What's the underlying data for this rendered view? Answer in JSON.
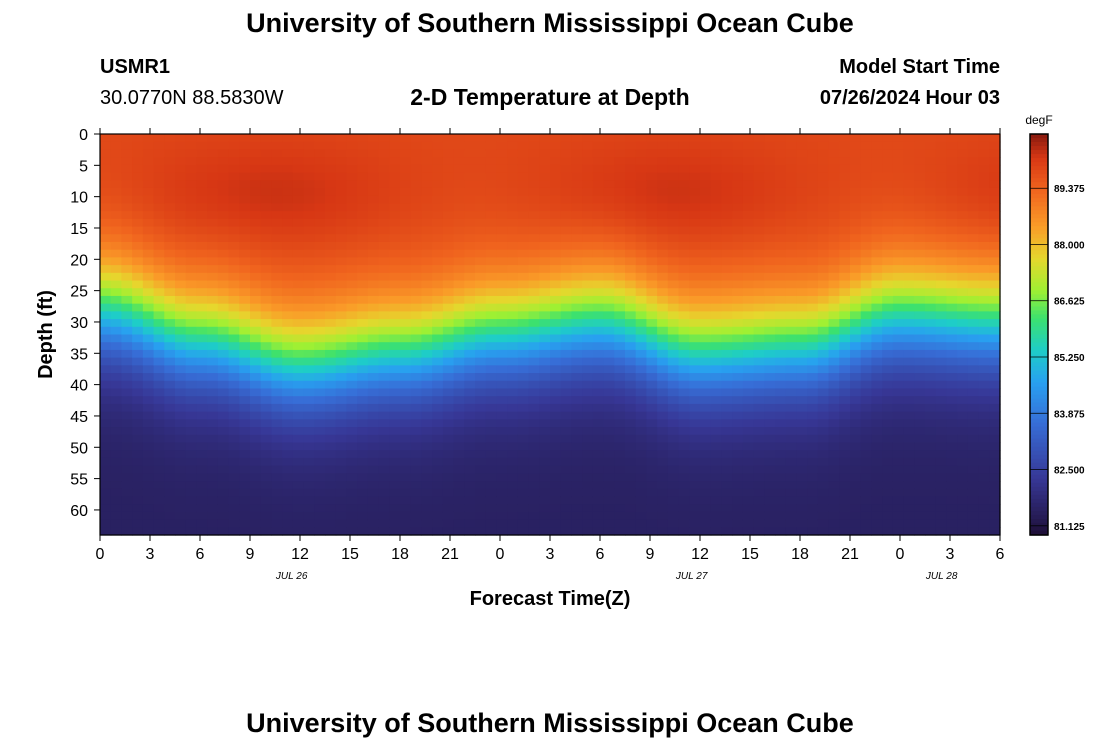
{
  "page": {
    "title": "University of Southern Mississippi Ocean Cube",
    "footer_title": "University of Southern Mississippi Ocean Cube",
    "station_id": "USMR1",
    "coords": "30.0770N  88.5830W",
    "plot_title": "2-D Temperature at Depth",
    "model_start_label": "Model Start Time",
    "model_start_value": "07/26/2024 Hour 03"
  },
  "chart_data": {
    "type": "heatmap",
    "title": "2-D Temperature at Depth",
    "xlabel": "Forecast Time(Z)",
    "ylabel": "Depth (ft)",
    "x_range_hours": [
      0,
      54
    ],
    "x_tick_labels": [
      "0",
      "3",
      "6",
      "9",
      "12",
      "15",
      "18",
      "21",
      "0",
      "3",
      "6",
      "9",
      "12",
      "15",
      "18",
      "21",
      "0",
      "3",
      "6"
    ],
    "date_labels": [
      {
        "label": "JUL 26",
        "hour": 11.5
      },
      {
        "label": "JUL 27",
        "hour": 35.5
      },
      {
        "label": "JUL 28",
        "hour": 50.5
      }
    ],
    "y_range": [
      0,
      64
    ],
    "y_tick_labels": [
      "0",
      "5",
      "10",
      "15",
      "20",
      "25",
      "30",
      "35",
      "40",
      "45",
      "50",
      "55",
      "60"
    ],
    "colorbar": {
      "unit": "degF",
      "range": [
        80.9,
        90.7
      ],
      "tick_labels": [
        "89.375",
        "88.000",
        "86.625",
        "85.250",
        "83.875",
        "82.500",
        "81.125"
      ],
      "ticks": [
        89.375,
        88.0,
        86.625,
        85.25,
        83.875,
        82.5,
        81.125
      ]
    },
    "thermocline_depth_ft": [
      {
        "hour": 0,
        "depth": 28
      },
      {
        "hour": 6,
        "depth": 33
      },
      {
        "hour": 12,
        "depth": 37
      },
      {
        "hour": 18,
        "depth": 35
      },
      {
        "hour": 24,
        "depth": 32
      },
      {
        "hour": 30,
        "depth": 30
      },
      {
        "hour": 36,
        "depth": 35
      },
      {
        "hour": 42,
        "depth": 34
      },
      {
        "hour": 48,
        "depth": 29
      },
      {
        "hour": 54,
        "depth": 30
      }
    ],
    "surface_temp_degF": 89.8,
    "bottom_temp_degF": 81.5
  }
}
